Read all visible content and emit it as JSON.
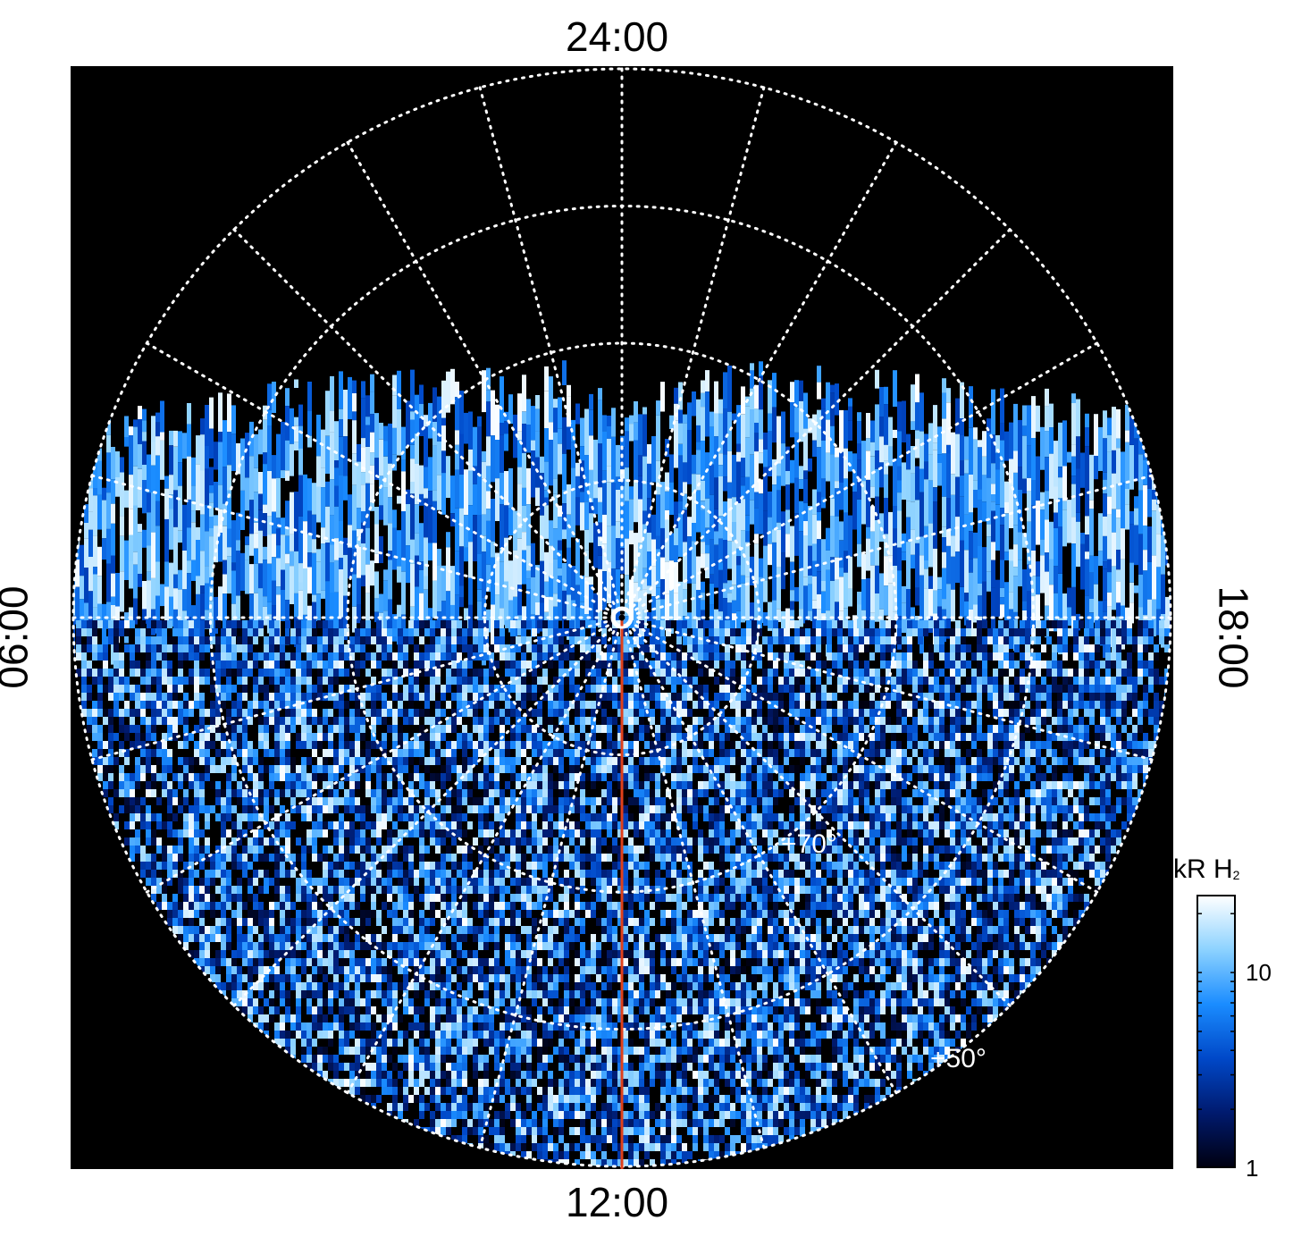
{
  "chart_data": {
    "type": "heatmap",
    "projection": "polar",
    "local_time_labels": {
      "top": "24:00",
      "bottom": "12:00",
      "left": "06:00",
      "right": "18:00"
    },
    "latitude_labels": [
      "+70°",
      "+50°"
    ],
    "latitude_circles_deg": [
      80,
      70,
      60,
      50
    ],
    "local_time_meridian_step_hours": 1,
    "colorbar": {
      "title": "kR H",
      "title_subscript": "2",
      "scale": "log",
      "range": [
        1,
        25
      ],
      "ticks": [
        {
          "value": 1,
          "label": "1"
        },
        {
          "value": 10,
          "label": "10"
        }
      ]
    },
    "colors": {
      "background": "#000000",
      "grid": "#ffffff",
      "marker_line": "#e0401a",
      "colormap": [
        "#000010",
        "#001a6e",
        "#0048c8",
        "#1a8cff",
        "#8cd2ff",
        "#ffffff"
      ]
    },
    "marker_line_local_time": "12:00",
    "grid": true
  }
}
